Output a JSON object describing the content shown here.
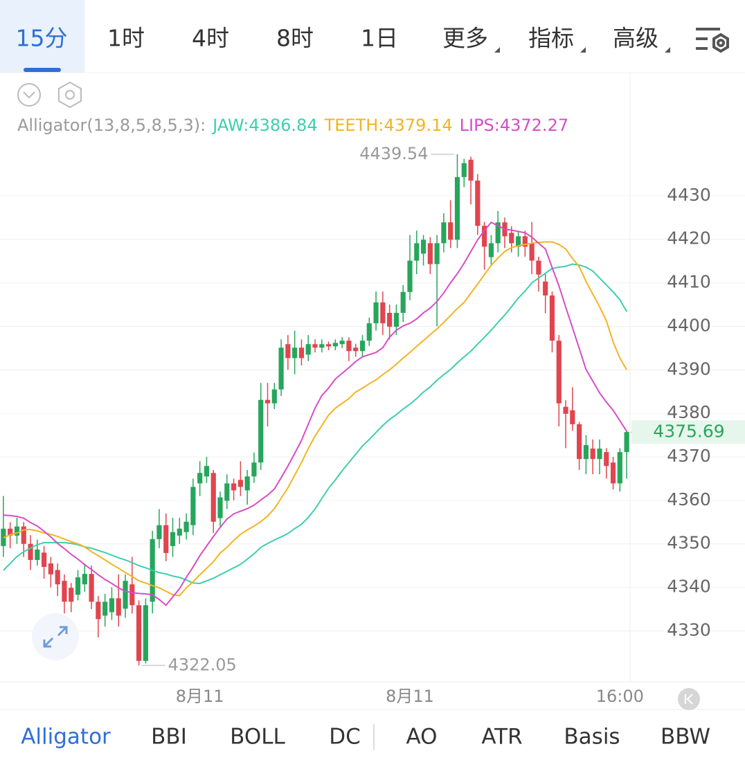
{
  "tabs": [
    "15分",
    "1时",
    "4时",
    "8时",
    "1日"
  ],
  "menus": [
    "更多",
    "指标",
    "高级"
  ],
  "indicator_tabs": [
    "Alligator",
    "BBI",
    "BOLL",
    "DC",
    "AO",
    "ATR",
    "Basis",
    "BBW"
  ],
  "chart_data": {
    "type": "candlestick",
    "indicator": "Alligator(13,8,5,8,5,3):",
    "up_color": "#26a65b",
    "down_color": "#e0454f",
    "categories": [
      null,
      null,
      null,
      null,
      null,
      null,
      null,
      null,
      null,
      null,
      null,
      null,
      null,
      null,
      null,
      null,
      null,
      null,
      null,
      null,
      null,
      null,
      null,
      null,
      null,
      null,
      null,
      null,
      null,
      "8月11",
      null,
      null,
      null,
      null,
      null,
      null,
      null,
      null,
      null,
      null,
      null,
      null,
      null,
      null,
      null,
      null,
      null,
      null,
      null,
      null,
      null,
      null,
      null,
      null,
      null,
      null,
      null,
      null,
      null,
      null,
      "8月11",
      null,
      null,
      null,
      null,
      null,
      null,
      null,
      null,
      null,
      null,
      null,
      null,
      null,
      null,
      null,
      null,
      null,
      null,
      null,
      null,
      null,
      null,
      null,
      null,
      null,
      null,
      null,
      null,
      null,
      null,
      "16:00",
      null
    ],
    "open": [
      4349.5,
      4353.5,
      4351.9,
      4354,
      4350,
      4346.3,
      4348,
      4345.5,
      4344,
      4341.5,
      4339.9,
      4338.3,
      4340.7,
      4343.1,
      4336.7,
      4333.5,
      4334.3,
      4337.5,
      4335.1,
      4340.7,
      4335.9,
      4323.1,
      4336.7,
      4351.1,
      4354.3,
      4349.5,
      4351.9,
      4352.7,
      4354.3,
      4363.9,
      4365.5,
      4366.3,
      4355.9,
      4359.9,
      4363.9,
      4364.7,
      4362.3,
      4365.5,
      4368.7,
      4383.1,
      4382.3,
      4385.5,
      4395.9,
      4392.7,
      4395.1,
      4393.5,
      4395.9,
      4395.1,
      4395.9,
      4395.4,
      4395.9,
      4396.7,
      4395.1,
      4394.3,
      4396.7,
      4400.7,
      4405.5,
      4403.1,
      4399.9,
      4403.1,
      4407.9,
      4415.1,
      4416.7,
      4419.1,
      4414.3,
      4419.1,
      4423.9,
      4419.9,
      4434.3,
      4438.3,
      4433.5,
      4423.1,
      4415.9,
      4419.1,
      4423.9,
      4421.5,
      4418.3,
      4420.7,
      4419.1,
      4415.1,
      4410.3,
      4407.1,
      4396.7,
      4381.5,
      4380.7,
      4377.5,
      4369.5,
      4371.9,
      4369.5,
      4371.1,
      4368.7,
      4363.9,
      4371.1
    ],
    "high": [
      4361,
      4355,
      4356,
      4355,
      4352,
      4351,
      4349.5,
      4347,
      4345.5,
      4343,
      4341,
      4344,
      4345.5,
      4345,
      4338,
      4338.5,
      4340,
      4343,
      4343,
      4347,
      4337,
      4337.5,
      4353,
      4358,
      4357,
      4356,
      4356,
      4357,
      4365,
      4369,
      4370,
      4367,
      4362,
      4366,
      4365,
      4369,
      4367,
      4371,
      4387,
      4387,
      4387,
      4397,
      4398,
      4399,
      4397,
      4398,
      4397,
      4397,
      4396.5,
      4397,
      4397.5,
      4397.5,
      4396,
      4398,
      4402,
      4408,
      4408,
      4405,
      4405,
      4409.5,
      4421,
      4422,
      4421,
      4420.5,
      4421,
      4426,
      4429,
      4439.54,
      4438.5,
      4439,
      4435,
      4424,
      4421,
      4426.5,
      4425,
      4423,
      4422,
      4422,
      4424,
      4416,
      4412,
      4408,
      4398,
      4383,
      4386,
      4378,
      4375,
      4374,
      4374,
      4372,
      4370,
      4372,
      4376
    ],
    "low": [
      4347,
      4349,
      4350,
      4347,
      4344,
      4345,
      4342,
      4340,
      4338,
      4334,
      4334.3,
      4337,
      4339,
      4335,
      4328.5,
      4331,
      4332.5,
      4331,
      4333,
      4334,
      4322.05,
      4322.5,
      4334,
      4349,
      4346,
      4347,
      4350,
      4351,
      4352,
      4361,
      4364,
      4352.5,
      4354,
      4358,
      4360,
      4361,
      4359,
      4364,
      4367,
      4377,
      4381,
      4384,
      4390,
      4389,
      4391,
      4392,
      4394,
      4394,
      4394.5,
      4394.5,
      4395,
      4392,
      4393,
      4393,
      4395.5,
      4399,
      4398,
      4397,
      4398,
      4401,
      4406,
      4412,
      4414,
      4412,
      4400,
      4417,
      4418,
      4418,
      4432,
      4428,
      4421,
      4413,
      4414,
      4417,
      4418,
      4417,
      4416,
      4416,
      4412,
      4408,
      4403,
      4394,
      4377,
      4372,
      4376,
      4367,
      4366,
      4366,
      4366,
      4365,
      4362.5,
      4362,
      4365
    ],
    "close": [
      4353.5,
      4351.9,
      4354,
      4350,
      4346.3,
      4348.7,
      4344.7,
      4343,
      4340.7,
      4336.7,
      4336.7,
      4342.3,
      4343.1,
      4336.7,
      4332.7,
      4336.7,
      4337.5,
      4333.5,
      4341.5,
      4335.9,
      4323.1,
      4335.9,
      4351.1,
      4354.3,
      4347.9,
      4352.7,
      4353.5,
      4355.1,
      4363.1,
      4366.3,
      4367.9,
      4355.1,
      4360.7,
      4363.9,
      4362.3,
      4363.1,
      4365.5,
      4368.7,
      4383.1,
      4382.3,
      4385.5,
      4395.1,
      4392.7,
      4395.1,
      4392.7,
      4395.9,
      4395.1,
      4395.9,
      4395.4,
      4396.2,
      4396.7,
      4394.3,
      4394.3,
      4396.7,
      4400.7,
      4405.5,
      4400.7,
      4399.9,
      4403.1,
      4407.9,
      4415.1,
      4419.1,
      4419.9,
      4414.3,
      4419.1,
      4423.9,
      4419.9,
      4434.3,
      4437.5,
      4433.5,
      4423.1,
      4418.3,
      4419.1,
      4423.9,
      4420.7,
      4419.1,
      4420.7,
      4418.3,
      4415.1,
      4411.9,
      4407.1,
      4396.7,
      4382.3,
      4379.9,
      4377.5,
      4369.5,
      4372.7,
      4369.5,
      4371.9,
      4367.9,
      4363.9,
      4371.1,
      4375.69
    ],
    "series": [
      {
        "name": "JAW:",
        "color": "#3ccfae",
        "legend_value": 4386.84,
        "values": [
          4343.9,
          4345.5,
          4347.1,
          4348.2,
          4349,
          4349.8,
          4350.3,
          4350.3,
          4350.3,
          4350.3,
          4350.1,
          4349.8,
          4349.3,
          4349,
          4348.5,
          4348,
          4347.4,
          4346.8,
          4346.3,
          4345.7,
          4345,
          4344.5,
          4343.9,
          4343.4,
          4343.1,
          4342.6,
          4342.3,
          4341.7,
          4341,
          4340.9,
          4341.5,
          4342.1,
          4342.9,
          4343.7,
          4344.5,
          4345.3,
          4346.5,
          4347.7,
          4349.2,
          4350.1,
          4350.9,
          4351.6,
          4352.4,
          4353.5,
          4354.5,
          4356.1,
          4358,
          4360.4,
          4362.8,
          4364.7,
          4366.8,
          4368.7,
          4370.6,
          4372.5,
          4374,
          4375.6,
          4377.2,
          4378.6,
          4379.7,
          4381,
          4382.1,
          4383.4,
          4384.9,
          4386.1,
          4387.6,
          4388.9,
          4390.1,
          4391.6,
          4393,
          4394.3,
          4395.9,
          4397.5,
          4399.1,
          4400.9,
          4402.6,
          4404.5,
          4406.5,
          4408.1,
          4410,
          4411.1,
          4412.2,
          4413.3,
          4413.6,
          4413.8,
          4414.3,
          4414.1,
          4413.6,
          4412.7,
          4411.1,
          4409.5,
          4407.9,
          4406.1,
          4403.4
        ]
      },
      {
        "name": "TEETH:",
        "color": "#f2b420",
        "legend_value": 4379.14,
        "values": [
          4351.4,
          4352.1,
          4352.5,
          4353.2,
          4353.3,
          4353,
          4352.5,
          4352.2,
          4351.7,
          4351.1,
          4350.5,
          4350,
          4349.3,
          4348.2,
          4347.3,
          4346.3,
          4345.3,
          4344.4,
          4343.4,
          4342.5,
          4341.5,
          4341,
          4340.4,
          4339.9,
          4339.1,
          4338.3,
          4338.1,
          4339.9,
          4341.3,
          4342.9,
          4344.4,
          4345.9,
          4347.9,
          4349.2,
          4350.8,
          4352.2,
          4353.2,
          4354.1,
          4355.1,
          4356.4,
          4358.1,
          4360.5,
          4362.9,
          4365.8,
          4368.7,
          4371.9,
          4374.8,
          4377.2,
          4379.6,
          4381.2,
          4382.3,
          4383.4,
          4384.9,
          4385.8,
          4386.8,
          4387.7,
          4388.9,
          4390,
          4391.3,
          4392.7,
          4394,
          4395.4,
          4396.7,
          4398.1,
          4399.4,
          4400.9,
          4402.5,
          4404.1,
          4405.5,
          4407.6,
          4409.7,
          4411.9,
          4414,
          4415.7,
          4417.2,
          4418.1,
          4418.5,
          4418.8,
          4419.1,
          4419.3,
          4419.4,
          4419.4,
          4418.8,
          4417.8,
          4415.6,
          4413.7,
          4410.3,
          4407.4,
          4404.5,
          4401.3,
          4396.4,
          4392.7,
          4390
        ]
      },
      {
        "name": "LIPS:",
        "color": "#d94cc4",
        "legend_value": 4372.27,
        "values": [
          4356.6,
          4356.5,
          4356.3,
          4355.9,
          4354.9,
          4354.1,
          4352.9,
          4351.6,
          4350.1,
          4348.9,
          4347.6,
          4346.5,
          4345.2,
          4344.1,
          4342.9,
          4341.8,
          4340.9,
          4339.9,
          4339.1,
          4338.8,
          4338.6,
          4338.5,
          4338.3,
          4337.2,
          4335.9,
          4337.8,
          4339.7,
          4342.3,
          4344.7,
          4347.3,
          4349.5,
          4351.7,
          4353.8,
          4355.7,
          4356.9,
          4357.5,
          4358.1,
          4358.9,
          4360.1,
          4361.2,
          4362.6,
          4365.2,
          4367.9,
          4370.8,
          4373.8,
          4377.5,
          4381.2,
          4384.1,
          4385.8,
          4387.9,
          4389.2,
          4390.5,
          4391.9,
          4393,
          4393.5,
          4394,
          4395.1,
          4397.5,
          4399.1,
          4400.1,
          4400.7,
          4401.7,
          4403.1,
          4404.2,
          4405.7,
          4407.7,
          4410,
          4412.1,
          4414.5,
          4417.2,
          4419.9,
          4422,
          4423.9,
          4423.1,
          4422.3,
          4422.1,
          4421.8,
          4421.5,
          4420.5,
          4419.1,
          4417.8,
          4413.5,
          4409.3,
          4404.4,
          4399.7,
          4394.9,
          4390.1,
          4387.4,
          4384.7,
          4382.6,
          4380.7,
          4378.3,
          4375.9
        ]
      }
    ],
    "ylim": [
      4318.3,
      4458.3
    ],
    "yticks": [
      4330,
      4340,
      4350,
      4360,
      4370,
      4380,
      4390,
      4400,
      4410,
      4420,
      4430
    ],
    "grid": true
  }
}
